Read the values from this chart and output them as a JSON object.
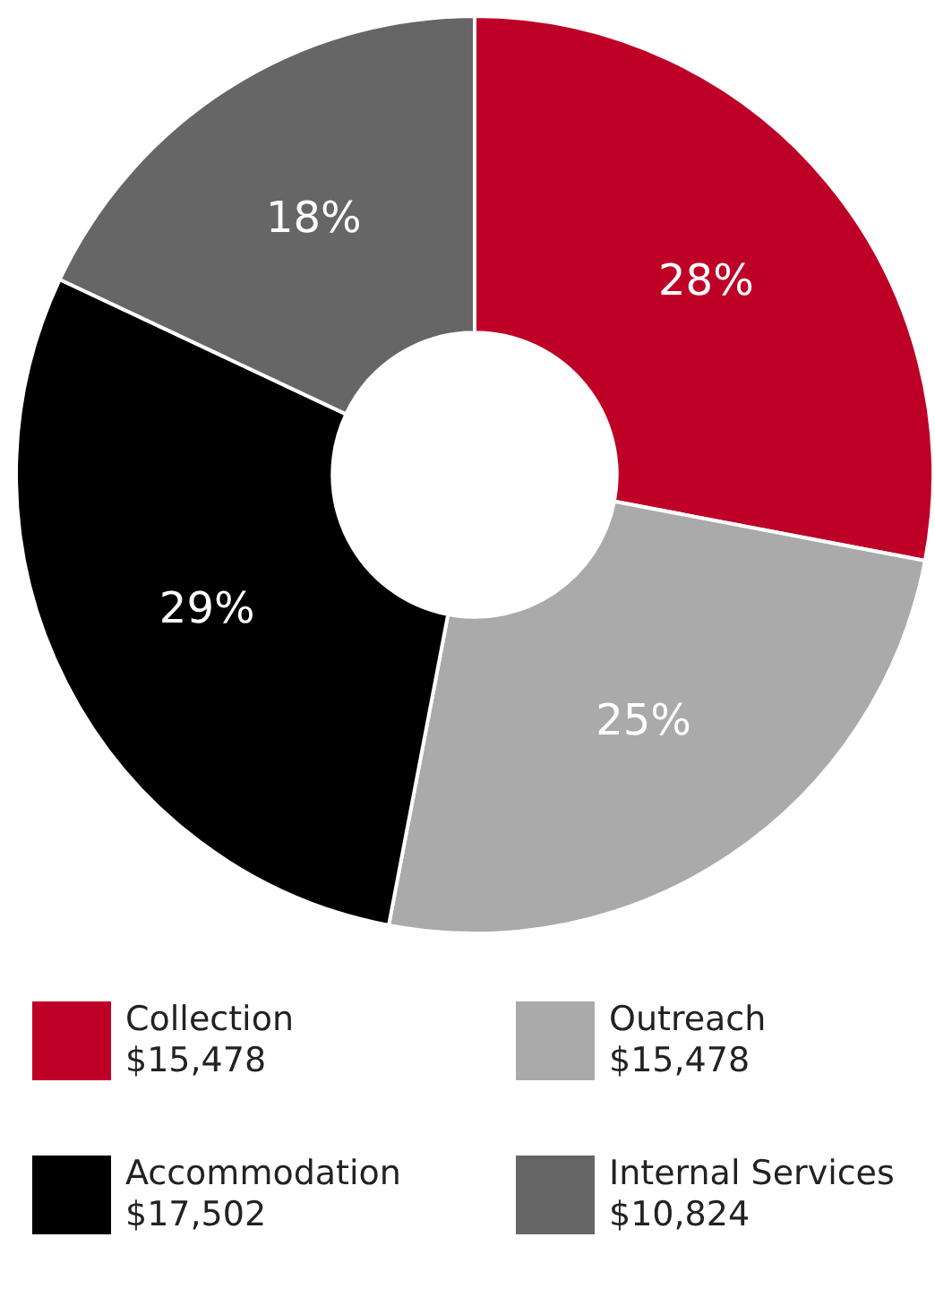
{
  "chart_data": {
    "type": "donut",
    "categories": [
      "Collection\n$15,478",
      "Outreach\n$15,478",
      "Accommodation\n$17,502",
      "Internal Services\n$10,824"
    ],
    "values": [
      28,
      25,
      29,
      18
    ],
    "value_labels": [
      "28%",
      "25%",
      "29%",
      "18%"
    ],
    "colors": [
      "#be0027",
      "#aaaaaa",
      "#000000",
      "#666666"
    ],
    "legend": "bottom"
  }
}
